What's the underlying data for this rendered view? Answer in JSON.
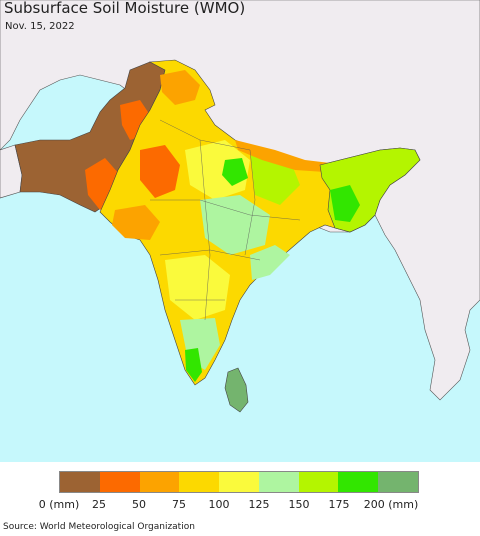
{
  "title": "Subsurface Soil Moisture (WMO)",
  "date": "Nov. 15, 2022",
  "legend": {
    "colors": [
      "#9c6333",
      "#fc6a00",
      "#fca300",
      "#fcd900",
      "#fafa3c",
      "#aef5a0",
      "#b4f500",
      "#32e600",
      "#74b46e"
    ],
    "labels": [
      "0 (mm)",
      "25",
      "50",
      "75",
      "100",
      "125",
      "150",
      "175",
      "200 (mm)"
    ]
  },
  "source": "Source: World Meteorological Organization",
  "colors": {
    "ocean": "#c6f8fc",
    "land_outside": "#f0ecf0",
    "border": "#333333"
  }
}
